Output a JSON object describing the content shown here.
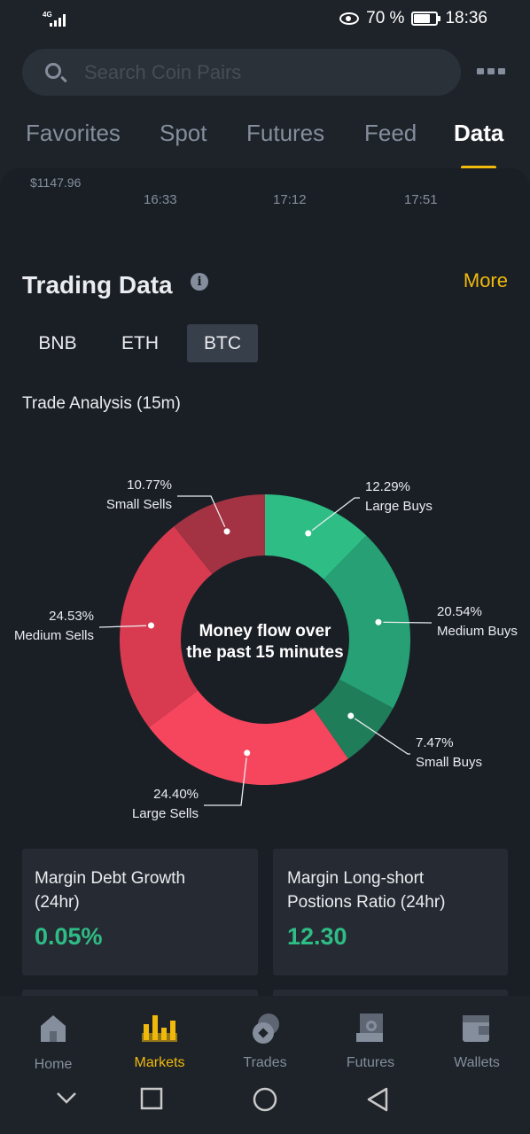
{
  "status_bar": {
    "network": "4G",
    "battery": "70 %",
    "time": "18:36"
  },
  "search": {
    "placeholder": "Search Coin Pairs"
  },
  "tabs": [
    "Favorites",
    "Spot",
    "Futures",
    "Feed",
    "Data"
  ],
  "price_chart": {
    "price": "$1147.96",
    "times": [
      "16:33",
      "17:12",
      "17:51"
    ]
  },
  "trading": {
    "title": "Trading Data",
    "more": "More",
    "coins": [
      "BNB",
      "ETH",
      "BTC"
    ],
    "active_coin": "BTC",
    "analysis_title": "Trade Analysis (15m)"
  },
  "chart_data": {
    "type": "pie",
    "center_text": [
      "Money flow over",
      "the past 15 minutes"
    ],
    "slices": [
      {
        "label": "Large Buys",
        "value": 12.29,
        "pct": "12.29%",
        "color": "#2ebd85"
      },
      {
        "label": "Medium Buys",
        "value": 20.54,
        "pct": "20.54%",
        "color": "#26a074"
      },
      {
        "label": "Small Buys",
        "value": 7.47,
        "pct": "7.47%",
        "color": "#1f7d5a"
      },
      {
        "label": "Large Sells",
        "value": 24.4,
        "pct": "24.40%",
        "color": "#f6465d"
      },
      {
        "label": "Medium Sells",
        "value": 24.53,
        "pct": "24.53%",
        "color": "#d83b50"
      },
      {
        "label": "Small Sells",
        "value": 10.77,
        "pct": "10.77%",
        "color": "#a33242"
      }
    ]
  },
  "cards": [
    {
      "label_line1": "Margin Debt Growth",
      "label_line2": "(24hr)",
      "value": "0.05%"
    },
    {
      "label_line1": "Margin Long-short",
      "label_line2": "Postions Ratio (24hr)",
      "value": "12.30"
    }
  ],
  "bottom_nav": [
    {
      "label": "Home",
      "icon": "home-icon"
    },
    {
      "label": "Markets",
      "icon": "markets-icon",
      "active": true
    },
    {
      "label": "Trades",
      "icon": "trades-icon"
    },
    {
      "label": "Futures",
      "icon": "futures-icon"
    },
    {
      "label": "Wallets",
      "icon": "wallets-icon"
    }
  ],
  "colors": {
    "accent": "#f0b90b",
    "buy": "#2ebd85",
    "sell": "#f6465d"
  }
}
